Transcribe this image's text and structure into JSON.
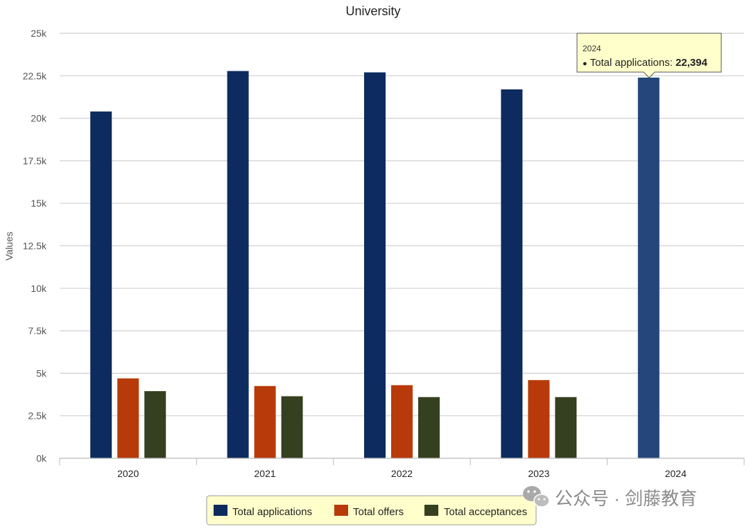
{
  "chart_data": {
    "type": "bar",
    "title": "University",
    "ylabel": "Values",
    "xlabel": "",
    "categories": [
      "2020",
      "2021",
      "2022",
      "2023",
      "2024"
    ],
    "series": [
      {
        "name": "Total applications",
        "color": "#0d2b5e",
        "values": [
          20400,
          22780,
          22700,
          21700,
          22394
        ]
      },
      {
        "name": "Total offers",
        "color": "#b83a0b",
        "values": [
          4700,
          4250,
          4300,
          4600,
          null
        ]
      },
      {
        "name": "Total acceptances",
        "color": "#34401f",
        "values": [
          3950,
          3650,
          3600,
          3600,
          null
        ]
      }
    ],
    "ylim": [
      0,
      25000
    ],
    "yticks": [
      0,
      2500,
      5000,
      7500,
      10000,
      12500,
      15000,
      17500,
      20000,
      22500,
      25000
    ],
    "ytick_labels": [
      "0k",
      "2.5k",
      "5k",
      "7.5k",
      "10k",
      "12.5k",
      "15k",
      "17.5k",
      "20k",
      "22.5k",
      "25k"
    ],
    "grid": true,
    "legend_position": "bottom-center",
    "highlight_color": "#24467a"
  },
  "tooltip": {
    "header": "2024",
    "bullet": "●",
    "series_label": "Total applications: ",
    "value": "22,394",
    "category_index": 4,
    "series_index": 0
  },
  "watermark": {
    "text": "公众号 · 剑藤教育",
    "icon": "wechat-icon"
  }
}
